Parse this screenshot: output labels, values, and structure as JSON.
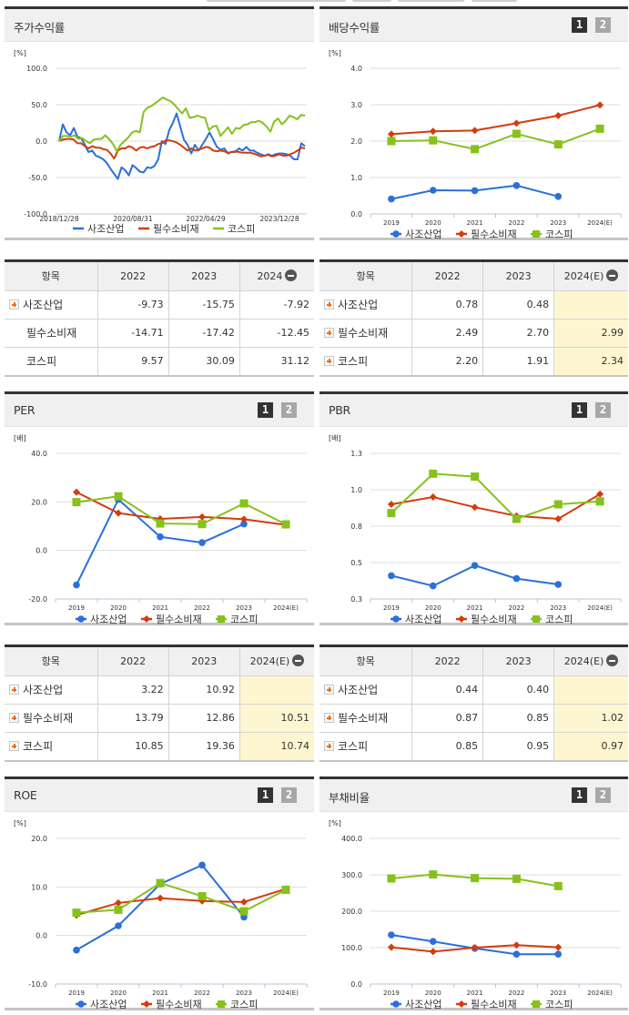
{
  "colors": {
    "sajo": "#2a6fdb",
    "pilsu": "#d33c0c",
    "kospi": "#86c11c",
    "grid": "#dddddd",
    "axis": "#b8c4d8"
  },
  "legend": [
    "사조산업",
    "필수소비재",
    "코스피"
  ],
  "panels": {
    "price_return": {
      "title": "주가수익률",
      "unit": "[%]"
    },
    "dividend": {
      "title": "배당수익률",
      "unit": "[%]",
      "btn1": "1",
      "btn2": "2"
    },
    "per": {
      "title": "PER",
      "unit": "[배]",
      "btn1": "1",
      "btn2": "2"
    },
    "pbr": {
      "title": "PBR",
      "unit": "[배]",
      "btn1": "1",
      "btn2": "2"
    },
    "roe": {
      "title": "ROE",
      "unit": "[%]",
      "btn1": "1",
      "btn2": "2"
    },
    "debt": {
      "title": "부채비율",
      "unit": "[%]",
      "btn1": "1",
      "btn2": "2"
    }
  },
  "tables": {
    "price_return": {
      "headers": [
        "항목",
        "2022",
        "2023",
        "2024"
      ],
      "rows": [
        {
          "name": "사조산업",
          "icon": true,
          "values": [
            "-9.73",
            "-15.75",
            "-7.92"
          ]
        },
        {
          "name": "필수소비재",
          "icon": false,
          "values": [
            "-14.71",
            "-17.42",
            "-12.45"
          ]
        },
        {
          "name": "코스피",
          "icon": false,
          "values": [
            "9.57",
            "30.09",
            "31.12"
          ]
        }
      ],
      "highlight_last": false
    },
    "dividend": {
      "headers": [
        "항목",
        "2022",
        "2023",
        "2024(E)"
      ],
      "rows": [
        {
          "name": "사조산업",
          "icon": true,
          "values": [
            "0.78",
            "0.48",
            ""
          ]
        },
        {
          "name": "필수소비재",
          "icon": true,
          "values": [
            "2.49",
            "2.70",
            "2.99"
          ]
        },
        {
          "name": "코스피",
          "icon": true,
          "values": [
            "2.20",
            "1.91",
            "2.34"
          ]
        }
      ],
      "highlight_last": true
    },
    "per": {
      "headers": [
        "항목",
        "2022",
        "2023",
        "2024(E)"
      ],
      "rows": [
        {
          "name": "사조산업",
          "icon": true,
          "values": [
            "3.22",
            "10.92",
            ""
          ]
        },
        {
          "name": "필수소비재",
          "icon": true,
          "values": [
            "13.79",
            "12.86",
            "10.51"
          ]
        },
        {
          "name": "코스피",
          "icon": true,
          "values": [
            "10.85",
            "19.36",
            "10.74"
          ]
        }
      ],
      "highlight_last": true
    },
    "pbr": {
      "headers": [
        "항목",
        "2022",
        "2023",
        "2024(E)"
      ],
      "rows": [
        {
          "name": "사조산업",
          "icon": true,
          "values": [
            "0.44",
            "0.40",
            ""
          ]
        },
        {
          "name": "필수소비재",
          "icon": true,
          "values": [
            "0.87",
            "0.85",
            "1.02"
          ]
        },
        {
          "name": "코스피",
          "icon": true,
          "values": [
            "0.85",
            "0.95",
            "0.97"
          ]
        }
      ],
      "highlight_last": true
    }
  },
  "chart_data": [
    {
      "id": "price_return",
      "type": "line",
      "title": "주가수익률",
      "ylabel": "[%]",
      "ylim": [
        -100,
        100
      ],
      "yticks": [
        "100.0",
        "50.0",
        "0.0",
        "-50.0",
        "-100.0"
      ],
      "xticks": [
        "2018/12/28",
        "2020/08/31",
        "2022/04/29",
        "2023/12/28"
      ],
      "legend_position": "bottom",
      "series": [
        {
          "name": "사조산업",
          "values": [
            0,
            23,
            12,
            8,
            18,
            6,
            4,
            -5,
            -15,
            -13,
            -20,
            -22,
            -25,
            -30,
            -38,
            -45,
            -52,
            -36,
            -40,
            -47,
            -33,
            -37,
            -42,
            -43,
            -36,
            -37,
            -34,
            -25,
            0,
            -4,
            15,
            25,
            38,
            20,
            2,
            -5,
            -17,
            -5,
            -13,
            -5,
            3,
            12,
            2,
            -8,
            -12,
            -10,
            -17,
            -15,
            -15,
            -10,
            -13,
            -8,
            -13,
            -13,
            -16,
            -18,
            -20,
            -18,
            -20,
            -18,
            -17,
            -17,
            -18,
            -20,
            -25,
            -25,
            -3,
            -7
          ]
        },
        {
          "name": "필수소비재",
          "values": [
            0,
            2,
            3,
            3,
            2,
            -3,
            -3,
            -7,
            -10,
            -7,
            -9,
            -9,
            -11,
            -12,
            -17,
            -24,
            -13,
            -10,
            -10,
            -7,
            -9,
            -13,
            -9,
            -8,
            -10,
            -8,
            -7,
            -4,
            -3,
            1,
            1,
            0,
            -2,
            -5,
            -9,
            -13,
            -10,
            -13,
            -12,
            -10,
            -8,
            -9,
            -13,
            -14,
            -13,
            -14,
            -16,
            -15,
            -14,
            -15,
            -16,
            -16,
            -16,
            -17,
            -19,
            -21,
            -20,
            -19,
            -21,
            -20,
            -18,
            -20,
            -20,
            -18,
            -16,
            -13,
            -9,
            -10
          ]
        },
        {
          "name": "코스피",
          "values": [
            0,
            7,
            7,
            6,
            8,
            3,
            4,
            0,
            -3,
            2,
            3,
            3,
            8,
            3,
            -4,
            -14,
            -5,
            0,
            5,
            12,
            14,
            12,
            40,
            46,
            48,
            52,
            56,
            60,
            57,
            55,
            50,
            44,
            38,
            45,
            32,
            33,
            35,
            33,
            32,
            15,
            20,
            21,
            7,
            13,
            19,
            10,
            18,
            17,
            22,
            23,
            26,
            26,
            28,
            25,
            20,
            13,
            27,
            31,
            23,
            28,
            35,
            33,
            30,
            36,
            35
          ]
        }
      ]
    },
    {
      "id": "dividend",
      "type": "line",
      "title": "배당수익률",
      "ylabel": "[%]",
      "ylim": [
        0,
        4
      ],
      "yticks": [
        "4.0",
        "3.0",
        "2.0",
        "1.0",
        "0.0"
      ],
      "categories": [
        "2019",
        "2020",
        "2021",
        "2022",
        "2023",
        "2024(E)"
      ],
      "legend_position": "bottom",
      "series": [
        {
          "name": "사조산업",
          "marker": "circle",
          "values": [
            0.41,
            0.65,
            0.64,
            0.78,
            0.48,
            null
          ]
        },
        {
          "name": "필수소비재",
          "marker": "diamond",
          "values": [
            2.19,
            2.27,
            2.29,
            2.49,
            2.7,
            2.99
          ]
        },
        {
          "name": "코스피",
          "marker": "square",
          "values": [
            2.0,
            2.02,
            1.78,
            2.2,
            1.91,
            2.34
          ]
        }
      ]
    },
    {
      "id": "per",
      "type": "line",
      "title": "PER",
      "ylabel": "[배]",
      "ylim": [
        -20,
        40
      ],
      "yticks": [
        "40.0",
        "20.0",
        "0.0",
        "-20.0"
      ],
      "categories": [
        "2019",
        "2020",
        "2021",
        "2022",
        "2023",
        "2024(E)"
      ],
      "legend_position": "bottom",
      "series": [
        {
          "name": "사조산업",
          "marker": "circle",
          "values": [
            -14.2,
            21.0,
            5.6,
            3.22,
            10.92,
            null
          ]
        },
        {
          "name": "필수소비재",
          "marker": "diamond",
          "values": [
            24.0,
            15.4,
            13.0,
            13.79,
            12.86,
            10.51
          ]
        },
        {
          "name": "코스피",
          "marker": "square",
          "values": [
            19.9,
            22.3,
            11.1,
            10.85,
            19.36,
            10.74
          ]
        }
      ]
    },
    {
      "id": "pbr",
      "type": "line",
      "title": "PBR",
      "ylabel": "[배]",
      "ylim": [
        0.3,
        1.3
      ],
      "yticks": [
        "1.3",
        "1.0",
        "0.8",
        "0.5",
        "0.3"
      ],
      "categories": [
        "2019",
        "2020",
        "2021",
        "2022",
        "2023",
        "2024(E)"
      ],
      "legend_position": "bottom",
      "series": [
        {
          "name": "사조산업",
          "marker": "circle",
          "values": [
            0.46,
            0.39,
            0.53,
            0.44,
            0.4,
            null
          ]
        },
        {
          "name": "필수소비재",
          "marker": "diamond",
          "values": [
            0.95,
            1.0,
            0.93,
            0.87,
            0.85,
            1.02
          ]
        },
        {
          "name": "코스피",
          "marker": "square",
          "values": [
            0.89,
            1.16,
            1.14,
            0.85,
            0.95,
            0.97
          ]
        }
      ]
    },
    {
      "id": "roe",
      "type": "line",
      "title": "ROE",
      "ylabel": "[%]",
      "ylim": [
        -10,
        20
      ],
      "yticks": [
        "20.0",
        "10.0",
        "0.0",
        "-10.0"
      ],
      "categories": [
        "2019",
        "2020",
        "2021",
        "2022",
        "2023",
        "2024(E)"
      ],
      "legend_position": "bottom",
      "series": [
        {
          "name": "사조산업",
          "marker": "circle",
          "values": [
            -3.0,
            2.0,
            10.6,
            14.5,
            3.8,
            null
          ]
        },
        {
          "name": "필수소비재",
          "marker": "diamond",
          "values": [
            4.2,
            6.7,
            7.7,
            7.1,
            6.9,
            9.6
          ]
        },
        {
          "name": "코스피",
          "marker": "square",
          "values": [
            4.7,
            5.3,
            10.8,
            8.1,
            5.0,
            9.4
          ]
        }
      ]
    },
    {
      "id": "debt",
      "type": "line",
      "title": "부채비율",
      "ylabel": "[%]",
      "ylim": [
        0,
        400
      ],
      "yticks": [
        "400.0",
        "300.0",
        "200.0",
        "100.0",
        "0.0"
      ],
      "categories": [
        "2019",
        "2020",
        "2021",
        "2022",
        "2023",
        "2024(E)"
      ],
      "legend_position": "bottom",
      "series": [
        {
          "name": "사조산업",
          "marker": "circle",
          "values": [
            135,
            117,
            98,
            82,
            82,
            null
          ]
        },
        {
          "name": "필수소비재",
          "marker": "diamond",
          "values": [
            101,
            89,
            100,
            107,
            101,
            null
          ]
        },
        {
          "name": "코스피",
          "marker": "square",
          "values": [
            290,
            301,
            291,
            289,
            269,
            null
          ]
        }
      ]
    }
  ]
}
